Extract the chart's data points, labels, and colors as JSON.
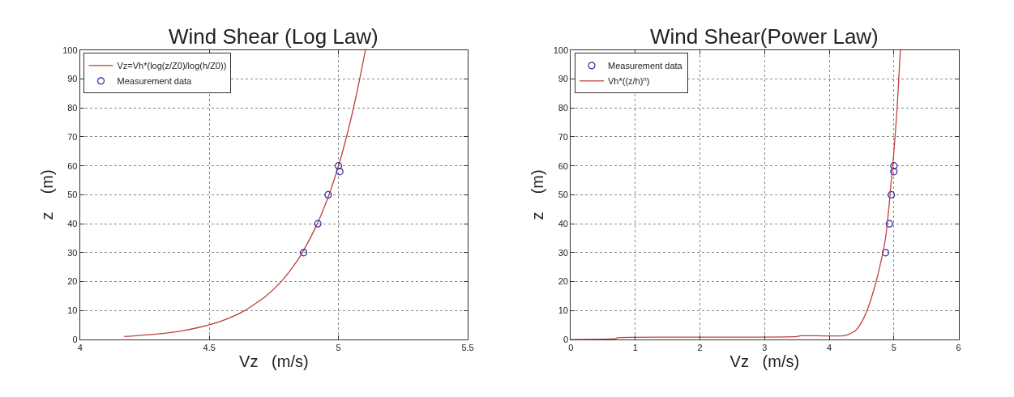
{
  "chart_data": [
    {
      "type": "line",
      "title": "Wind Shear (Log Law)",
      "xlabel": "Vz   (m/s)",
      "ylabel": "z    (m)",
      "xlim": [
        4,
        5.5
      ],
      "xticks": [
        4,
        4.5,
        5,
        5.5
      ],
      "ylim": [
        0,
        100
      ],
      "yticks": [
        0,
        10,
        20,
        30,
        40,
        50,
        60,
        70,
        80,
        90,
        100
      ],
      "grid": true,
      "legend": "top left",
      "series": [
        {
          "name": "Vz=Vh*(log(z/Z0)/log(h/Z0))",
          "color": "#c04040",
          "marker": "none",
          "line_style": "solid",
          "x": [
            4.171,
            4.311,
            4.394,
            4.497,
            4.565,
            4.637,
            4.719,
            4.778,
            4.823,
            4.86,
            4.918,
            4.963,
            5.0,
            5.031,
            5.058,
            5.082,
            5.104
          ],
          "values": [
            1,
            2,
            3,
            5,
            7,
            10,
            15,
            20,
            25,
            30,
            40,
            50,
            60,
            70,
            80,
            90,
            100
          ]
        },
        {
          "name": "Measurement data",
          "type": "scatter",
          "color": "#3030a0",
          "marker": "circle",
          "x": [
            4.865,
            4.92,
            4.96,
            5.0,
            5.005
          ],
          "values": [
            30,
            40,
            50,
            60,
            58
          ]
        }
      ]
    },
    {
      "type": "line",
      "title": "Wind Shear(Power Law)",
      "xlabel": "Vz   (m/s)",
      "ylabel": "z    (m)",
      "xlim": [
        0,
        6
      ],
      "xticks": [
        0,
        1,
        2,
        3,
        4,
        5,
        6
      ],
      "ylim": [
        0,
        100
      ],
      "yticks": [
        0,
        10,
        20,
        30,
        40,
        50,
        60,
        70,
        80,
        90,
        100
      ],
      "grid": true,
      "legend": "top left",
      "series": [
        {
          "name": "Measurement data",
          "type": "scatter",
          "color": "#3030a0",
          "marker": "circle",
          "x": [
            4.87,
            4.93,
            4.96,
            5.0,
            5.0
          ],
          "values": [
            30,
            40,
            50,
            60,
            58
          ]
        },
        {
          "name": "Vh*((z/h)$^{n}$)",
          "color": "#c04040",
          "marker": "none",
          "line_style": "solid",
          "x": [
            0,
            0.7,
            0.72,
            2.1,
            3.5,
            3.55,
            4.25,
            4.4,
            4.5,
            4.6,
            4.7,
            4.8,
            4.87,
            4.92,
            4.96,
            5.0,
            5.05,
            5.1
          ],
          "values": [
            0,
            0.3,
            0.6,
            0.8,
            1,
            1.3,
            1.4,
            3,
            6,
            11,
            18,
            27,
            35,
            45,
            55,
            65,
            80,
            100
          ]
        }
      ]
    }
  ]
}
